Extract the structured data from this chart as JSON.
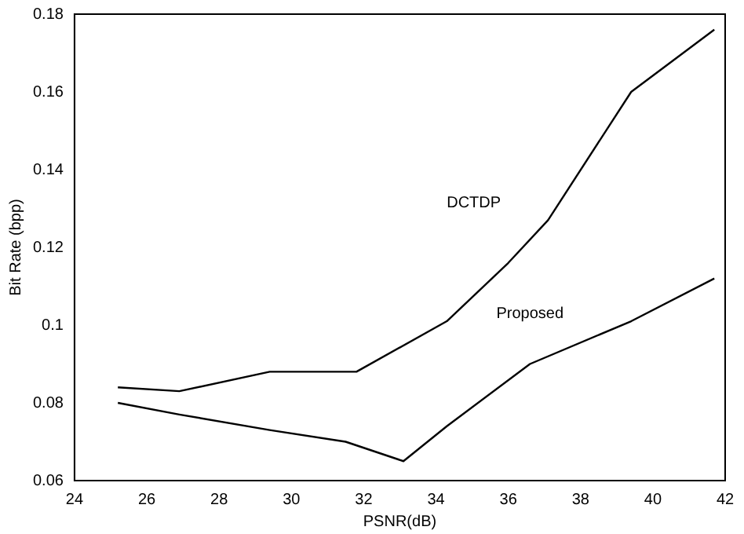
{
  "chart_data": {
    "type": "line",
    "xlabel": "PSNR(dB)",
    "ylabel": "Bit Rate (bpp)",
    "xlim": [
      24,
      42
    ],
    "xticks": [
      24,
      26,
      28,
      30,
      32,
      34,
      36,
      38,
      40,
      42
    ],
    "ylim": [
      0.06,
      0.18
    ],
    "yticks": [
      0.06,
      0.08,
      0.1,
      0.12,
      0.14,
      0.16,
      0.18
    ],
    "grid": false,
    "legend": false,
    "marker": "none",
    "line_style": "solid",
    "series": [
      {
        "name": "DCTDP",
        "color": "#000000",
        "x": [
          25.2,
          26.9,
          29.4,
          31.8,
          34.3,
          36.0,
          37.1,
          39.4,
          41.7
        ],
        "values": [
          0.084,
          0.083,
          0.088,
          0.088,
          0.101,
          0.116,
          0.127,
          0.16,
          0.176
        ]
      },
      {
        "name": "Proposed",
        "color": "#000000",
        "x": [
          25.2,
          26.9,
          29.4,
          31.5,
          33.1,
          34.3,
          36.6,
          39.4,
          41.7
        ],
        "values": [
          0.08,
          0.077,
          0.073,
          0.07,
          0.065,
          0.074,
          0.09,
          0.101,
          0.112
        ]
      }
    ]
  }
}
